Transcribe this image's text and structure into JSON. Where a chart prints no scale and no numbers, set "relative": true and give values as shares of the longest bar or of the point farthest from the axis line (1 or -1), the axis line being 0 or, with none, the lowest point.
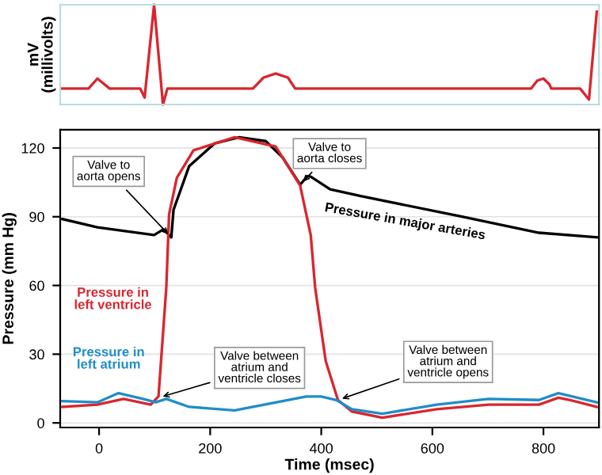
{
  "chart_data": [
    {
      "type": "line",
      "relative": true,
      "ylabel": "mV\n(millivolts)",
      "xlim": [
        -70,
        900
      ],
      "tick_labels": false,
      "series": [
        {
          "color": "#d9262e",
          "x": [
            -68,
            -19,
            -3,
            19,
            74,
            82,
            99,
            115,
            123,
            277,
            296,
            318,
            340,
            353,
            778,
            789,
            800,
            811,
            814,
            866,
            882,
            896
          ],
          "values": [
            0.16,
            0.16,
            0.26,
            0.16,
            0.16,
            0.07,
            1,
            0,
            0.16,
            0.16,
            0.27,
            0.31,
            0.27,
            0.16,
            0.16,
            0.24,
            0.26,
            0.2,
            0.16,
            0.16,
            0.05,
            0.93
          ]
        }
      ]
    },
    {
      "type": "line",
      "xlabel": "Time (msec)",
      "ylabel": "Pressure (mm Hg)",
      "xlim": [
        -70,
        900
      ],
      "ylim": [
        -2,
        128
      ],
      "xticks": [
        0,
        200,
        400,
        600,
        800
      ],
      "yticks": [
        0,
        30,
        60,
        90,
        120
      ],
      "grid": "y",
      "series": [
        {
          "name": "Pressure in major arteries",
          "color": "#000000",
          "x": [
            -66,
            -3,
            99,
            116,
            130,
            134,
            162,
            208,
            252,
            300,
            330,
            362,
            375,
            381,
            416,
            471,
            655,
            792,
            896
          ],
          "values": [
            89,
            85.4,
            82,
            84.5,
            81,
            93,
            112,
            122,
            124.7,
            123,
            116,
            104,
            107.7,
            107.5,
            102,
            99,
            90,
            83,
            81
          ]
        },
        {
          "name": "Pressure in\nleft ventricle",
          "color": "#d9262e",
          "x": [
            -66,
            -3,
            44,
            93,
            107,
            121,
            126,
            140,
            170,
            244,
            318,
            362,
            381,
            389,
            408,
            430,
            455,
            510,
            608,
            701,
            792,
            827,
            848,
            896
          ],
          "values": [
            7,
            8,
            10.5,
            8,
            11.6,
            59,
            91,
            107,
            119,
            124.7,
            120.6,
            103.6,
            82,
            59,
            27,
            10,
            5,
            2.3,
            6,
            8,
            8,
            11,
            10,
            7
          ]
        },
        {
          "name": "Pressure in\nleft atrium",
          "color": "#1f8dc8",
          "x": [
            -66,
            -3,
            35,
            79,
            102,
            121,
            162,
            244,
            373,
            400,
            427,
            455,
            510,
            608,
            701,
            792,
            827,
            896
          ],
          "values": [
            9.5,
            9,
            13,
            10.5,
            9,
            10.5,
            7,
            5.5,
            11.5,
            11.5,
            10,
            6,
            4,
            8,
            10.5,
            10,
            13,
            9
          ]
        }
      ],
      "annotations": [
        {
          "text": "Valve to\naorta opens",
          "x": 130,
          "y": 81
        },
        {
          "text": "Valve to\naorta closes",
          "x": 362,
          "y": 104
        },
        {
          "text": "Valve between\natrium and\nventricle closes",
          "x": 107,
          "y": 11
        },
        {
          "text": "Valve between\natrium and\nventricle opens",
          "x": 430,
          "y": 10
        }
      ]
    }
  ]
}
